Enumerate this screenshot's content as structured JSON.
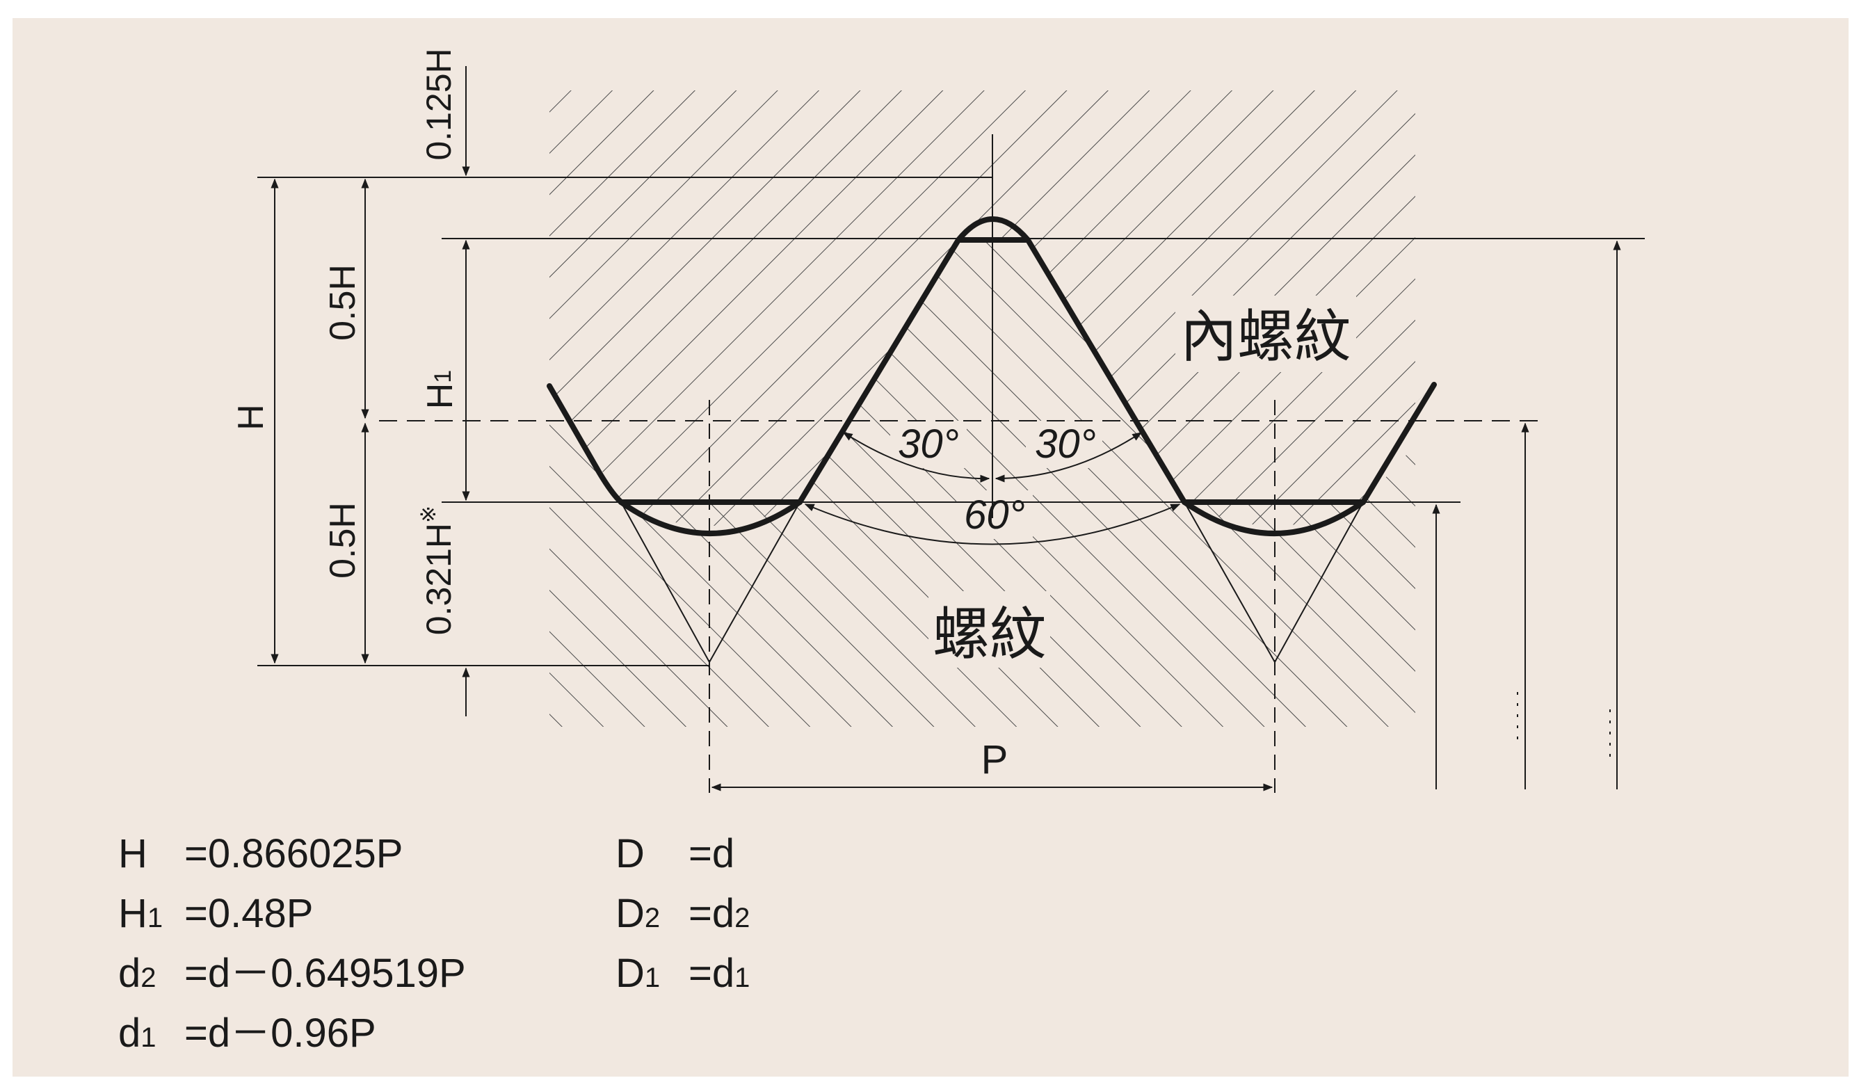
{
  "diagram": {
    "labels": {
      "h_0125": "0.125H",
      "h_05_top": "0.5H",
      "h_05_bottom": "0.5H",
      "h1": "H",
      "h1_sub": "1",
      "h_0321": "0.321H",
      "h_0321_mark": "※",
      "h_total": "H",
      "angle_left": "30°",
      "angle_right": "30°",
      "angle_full": "60°",
      "internal_thread": "內螺紋",
      "external_thread": "螺紋",
      "pitch": "P"
    },
    "colors": {
      "background": "#f1e8e0",
      "profile": "#1a1a1a",
      "hatch": "#4a4a4a"
    }
  },
  "formulas": [
    {
      "lhs": "H",
      "sub": "",
      "eq": "=0.866025P"
    },
    {
      "lhs": "H",
      "sub": "1",
      "eq": "=0.48P"
    },
    {
      "lhs": "d",
      "sub": "2",
      "eq": "=d－0.649519P"
    },
    {
      "lhs": "d",
      "sub": "1",
      "eq": "=d－0.96P"
    },
    {
      "lhs": "D",
      "sub": "",
      "eq": "=d"
    },
    {
      "lhs": "D",
      "sub": "2",
      "eq": "=d",
      "eq_sub": "2"
    },
    {
      "lhs": "D",
      "sub": "1",
      "eq": "=d",
      "eq_sub": "1"
    }
  ]
}
